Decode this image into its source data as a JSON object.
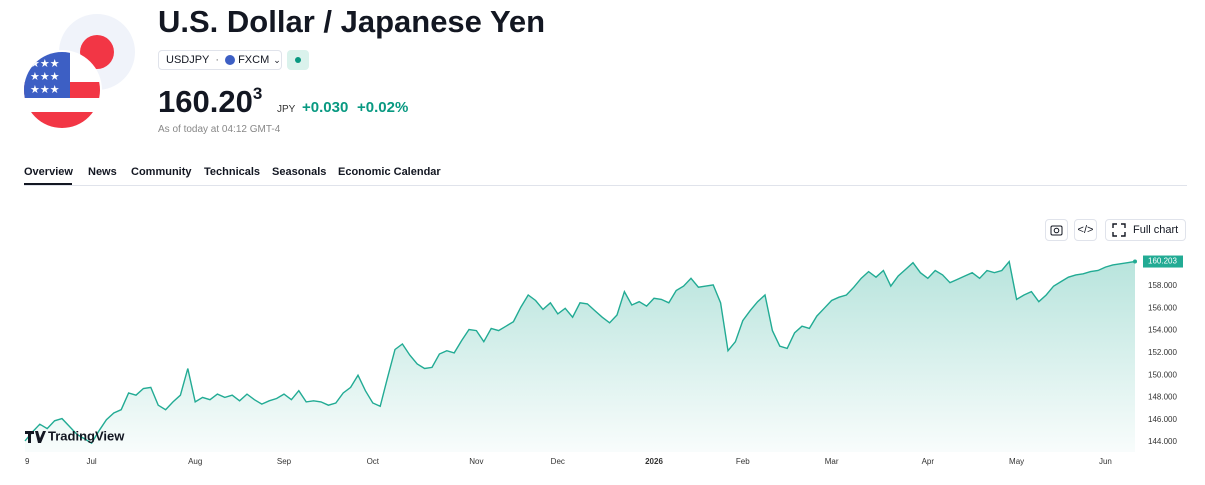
{
  "header": {
    "title": "U.S. Dollar / Japanese Yen",
    "symbol": "USDJPY",
    "exchange": "FXCM",
    "price": "160.20",
    "price_sup": "3",
    "currency": "JPY",
    "change": "+0.030",
    "change_pct": "+0.02%",
    "timestamp": "As of today at 04:12 GMT-4"
  },
  "tabs": [
    "Overview",
    "News",
    "Community",
    "Technicals",
    "Seasonals",
    "Economic Calendar"
  ],
  "toolbar": {
    "full_chart": "Full chart"
  },
  "logo": "TradingView",
  "chart_data": {
    "type": "area",
    "color": "#22ab94",
    "grid": false,
    "categories": [
      "9",
      null,
      null,
      null,
      null,
      null,
      null,
      null,
      null,
      "Jul",
      null,
      null,
      null,
      null,
      null,
      null,
      null,
      null,
      null,
      null,
      null,
      null,
      null,
      "Aug",
      null,
      null,
      null,
      null,
      null,
      null,
      null,
      null,
      null,
      null,
      null,
      "Sep",
      null,
      null,
      null,
      null,
      null,
      null,
      null,
      null,
      null,
      null,
      null,
      "Oct",
      null,
      null,
      null,
      null,
      null,
      null,
      null,
      null,
      null,
      null,
      null,
      null,
      null,
      "Nov",
      null,
      null,
      null,
      null,
      null,
      null,
      null,
      null,
      null,
      null,
      "Dec",
      null,
      null,
      null,
      null,
      null,
      null,
      null,
      null,
      null,
      null,
      null,
      null,
      "2026",
      null,
      null,
      null,
      null,
      null,
      null,
      null,
      null,
      null,
      null,
      null,
      "Feb",
      null,
      null,
      null,
      null,
      null,
      null,
      null,
      null,
      null,
      null,
      null,
      "Mar",
      null,
      null,
      null,
      null,
      null,
      null,
      null,
      null,
      null,
      null,
      null,
      null,
      "Apr",
      null,
      null,
      null,
      null,
      null,
      null,
      null,
      null,
      null,
      null,
      null,
      "May",
      null,
      null,
      null,
      null,
      null,
      null,
      null,
      null,
      null,
      null,
      null,
      "Jun",
      null,
      null,
      null,
      null
    ],
    "values": [
      144.1,
      144.9,
      145.6,
      145.2,
      145.9,
      146.1,
      145.4,
      144.7,
      144.3,
      143.9,
      145.0,
      146.0,
      146.6,
      146.9,
      148.4,
      148.2,
      148.8,
      148.9,
      147.3,
      146.9,
      147.6,
      148.2,
      150.6,
      147.6,
      148.0,
      147.8,
      148.3,
      148.0,
      148.2,
      147.7,
      148.3,
      147.8,
      147.4,
      147.7,
      147.9,
      148.3,
      147.8,
      148.6,
      147.6,
      147.7,
      147.6,
      147.3,
      147.5,
      148.4,
      148.9,
      150.0,
      148.6,
      147.5,
      147.2,
      149.8,
      152.3,
      152.8,
      151.8,
      151.0,
      150.6,
      150.7,
      151.9,
      152.2,
      152.0,
      153.1,
      154.1,
      154.0,
      153.0,
      154.2,
      154.0,
      154.4,
      154.8,
      156.1,
      157.2,
      156.7,
      155.9,
      156.5,
      155.5,
      156.0,
      155.2,
      156.5,
      156.4,
      155.8,
      155.2,
      154.7,
      155.4,
      157.5,
      156.3,
      156.6,
      156.2,
      156.9,
      156.8,
      156.5,
      157.6,
      158.0,
      158.7,
      157.9,
      158.0,
      158.1,
      156.5,
      152.2,
      153.0,
      154.9,
      155.8,
      156.6,
      157.2,
      154.0,
      152.6,
      152.4,
      153.8,
      154.4,
      154.2,
      155.3,
      156.0,
      156.7,
      157.0,
      157.2,
      157.9,
      158.7,
      159.3,
      158.8,
      159.4,
      158.0,
      158.9,
      159.5,
      160.1,
      159.2,
      158.7,
      159.4,
      159.0,
      158.3,
      158.6,
      158.9,
      159.2,
      158.7,
      159.4,
      159.2,
      159.4,
      160.2,
      156.8,
      157.2,
      157.5,
      156.6,
      157.2,
      158.0,
      158.4,
      158.8,
      159.0,
      159.1,
      159.3,
      159.4,
      159.7,
      159.9,
      160.0,
      160.1,
      160.203
    ],
    "ylim": [
      143.1,
      162.1
    ],
    "yticks": [
      {
        "value": 144,
        "label": "144.000"
      },
      {
        "value": 146,
        "label": "146.000"
      },
      {
        "value": 148,
        "label": "148.000"
      },
      {
        "value": 150,
        "label": "150.000"
      },
      {
        "value": 152,
        "label": "152.000"
      },
      {
        "value": 154,
        "label": "154.000"
      },
      {
        "value": 156,
        "label": "156.000"
      },
      {
        "value": 158,
        "label": "158.000"
      }
    ]
  }
}
